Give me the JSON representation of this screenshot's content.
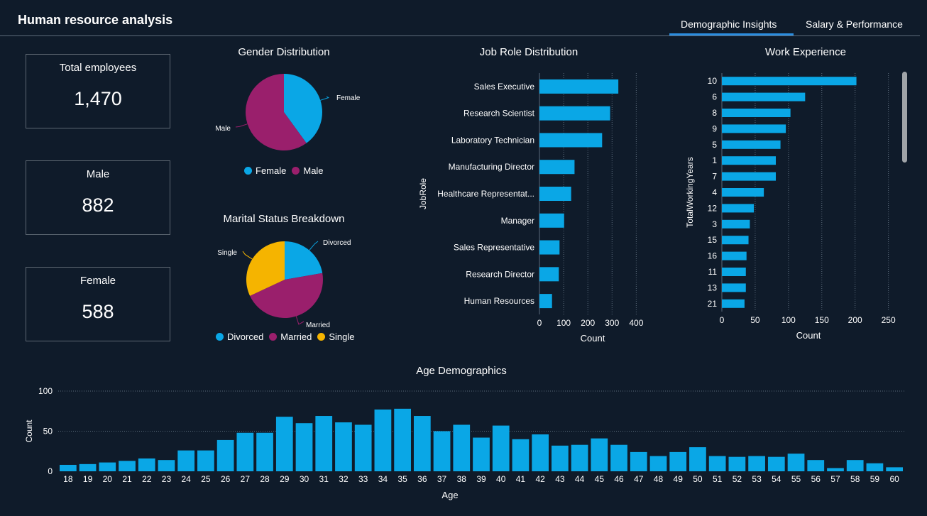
{
  "app": {
    "title": "Human resource analysis",
    "tabs": [
      {
        "label": "Demographic Insights",
        "active": true
      },
      {
        "label": "Salary & Performance",
        "active": false
      }
    ]
  },
  "colors": {
    "background": "#0f1b2a",
    "bar": "#0aa7e6",
    "female": "#0aa7e6",
    "male": "#9a1f6c",
    "single": "#f5b400",
    "tab_accent": "#2a8de0"
  },
  "kpis": [
    {
      "label": "Total employees",
      "value": "1,470"
    },
    {
      "label": "Male",
      "value": "882"
    },
    {
      "label": "Female",
      "value": "588"
    }
  ],
  "chart_data": [
    {
      "type": "pie",
      "title": "Gender Distribution",
      "labels": [
        "Female",
        "Male"
      ],
      "values": [
        588,
        882
      ],
      "legend": "bottom"
    },
    {
      "type": "pie",
      "title": "Marital Status Breakdown",
      "labels": [
        "Divorced",
        "Married",
        "Single"
      ],
      "values": [
        327,
        673,
        470
      ],
      "legend": "bottom"
    },
    {
      "type": "bar",
      "orientation": "horizontal",
      "title": "Job Role Distribution",
      "categories": [
        "Sales Executive",
        "Research Scientist",
        "Laboratory Technician",
        "Manufacturing Director",
        "Healthcare Representat...",
        "Manager",
        "Sales Representative",
        "Research Director",
        "Human Resources"
      ],
      "values": [
        326,
        292,
        259,
        145,
        131,
        102,
        83,
        80,
        52
      ],
      "xlabel": "Count",
      "ylabel": "JobRole",
      "xlim": [
        0,
        440
      ],
      "xticks": [
        0,
        100,
        200,
        300,
        400
      ],
      "grid": true
    },
    {
      "type": "bar",
      "orientation": "horizontal",
      "title": "Work Experience",
      "categories": [
        "10",
        "6",
        "8",
        "9",
        "5",
        "1",
        "7",
        "4",
        "12",
        "3",
        "15",
        "16",
        "11",
        "13",
        "21"
      ],
      "values": [
        202,
        125,
        103,
        96,
        88,
        81,
        81,
        63,
        48,
        42,
        40,
        37,
        36,
        36,
        34
      ],
      "xlabel": "Count",
      "ylabel": "TotalWorkingYears",
      "xlim": [
        0,
        260
      ],
      "xticks": [
        0,
        50,
        100,
        150,
        200,
        250
      ],
      "grid": true
    },
    {
      "type": "bar",
      "title": "Age Demographics",
      "categories": [
        "18",
        "19",
        "20",
        "21",
        "22",
        "23",
        "24",
        "25",
        "26",
        "27",
        "28",
        "29",
        "30",
        "31",
        "32",
        "33",
        "34",
        "35",
        "36",
        "37",
        "38",
        "39",
        "40",
        "41",
        "42",
        "43",
        "44",
        "45",
        "46",
        "47",
        "48",
        "49",
        "50",
        "51",
        "52",
        "53",
        "54",
        "55",
        "56",
        "57",
        "58",
        "59",
        "60"
      ],
      "values": [
        8,
        9,
        11,
        13,
        16,
        14,
        26,
        26,
        39,
        48,
        48,
        68,
        60,
        69,
        61,
        58,
        77,
        78,
        69,
        50,
        58,
        42,
        57,
        40,
        46,
        32,
        33,
        41,
        33,
        24,
        19,
        24,
        30,
        19,
        18,
        19,
        18,
        22,
        14,
        4,
        14,
        10,
        5
      ],
      "xlabel": "Age",
      "ylabel": "Count",
      "ylim": [
        0,
        100
      ],
      "yticks": [
        0,
        50,
        100
      ],
      "grid": true
    }
  ]
}
